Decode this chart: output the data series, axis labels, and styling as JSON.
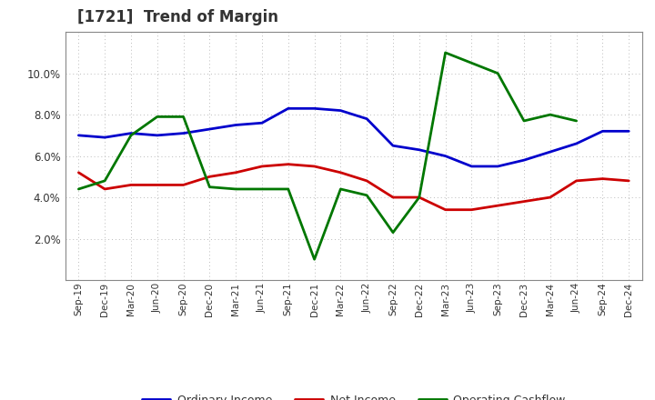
{
  "title": "[1721]  Trend of Margin",
  "x_labels": [
    "Sep-19",
    "Dec-19",
    "Mar-20",
    "Jun-20",
    "Sep-20",
    "Dec-20",
    "Mar-21",
    "Jun-21",
    "Sep-21",
    "Dec-21",
    "Mar-22",
    "Jun-22",
    "Sep-22",
    "Dec-22",
    "Mar-23",
    "Jun-23",
    "Sep-23",
    "Dec-23",
    "Mar-24",
    "Jun-24",
    "Sep-24",
    "Dec-24"
  ],
  "ordinary_income": [
    7.0,
    6.9,
    7.1,
    7.0,
    7.1,
    7.3,
    7.5,
    7.6,
    8.3,
    8.3,
    8.2,
    7.8,
    6.5,
    6.3,
    6.0,
    5.5,
    5.5,
    5.8,
    6.2,
    6.6,
    7.2,
    7.2
  ],
  "net_income": [
    5.2,
    4.4,
    4.6,
    4.6,
    4.6,
    5.0,
    5.2,
    5.5,
    5.6,
    5.5,
    5.2,
    4.8,
    4.0,
    4.0,
    3.4,
    3.4,
    3.6,
    3.8,
    4.0,
    4.8,
    4.9,
    4.8
  ],
  "operating_cashflow": [
    4.4,
    4.8,
    7.0,
    7.9,
    7.9,
    4.5,
    4.4,
    4.4,
    4.4,
    1.0,
    4.4,
    4.1,
    2.3,
    4.0,
    11.0,
    10.5,
    10.0,
    7.7,
    8.0,
    7.7,
    null,
    null
  ],
  "ylim": [
    0,
    12
  ],
  "yticks": [
    2.0,
    4.0,
    6.0,
    8.0,
    10.0
  ],
  "line_colors": {
    "ordinary_income": "#0000cc",
    "net_income": "#cc0000",
    "operating_cashflow": "#007700"
  },
  "legend_labels": {
    "ordinary_income": "Ordinary Income",
    "net_income": "Net Income",
    "operating_cashflow": "Operating Cashflow"
  },
  "title_color": "#333333",
  "background_color": "#ffffff",
  "grid_color": "#bbbbbb"
}
